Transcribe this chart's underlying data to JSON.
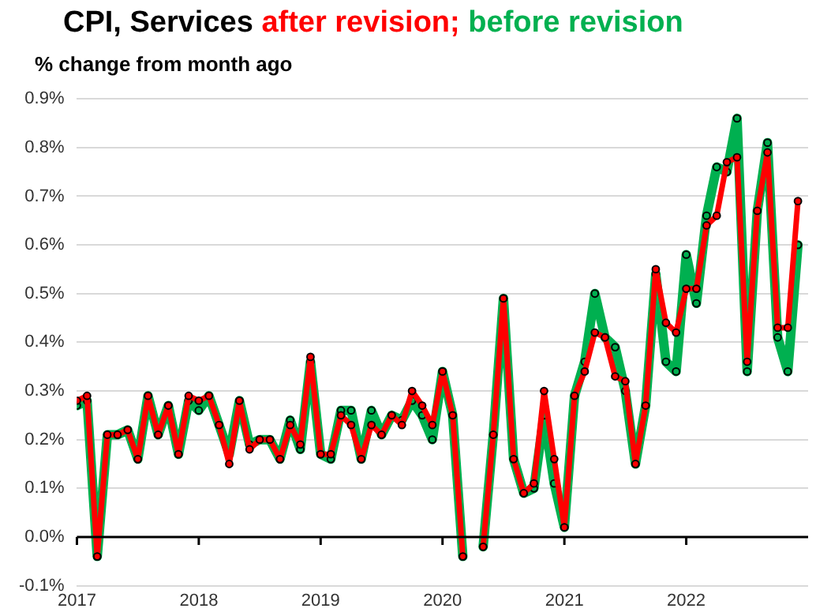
{
  "chart_data": {
    "type": "line",
    "title": "CPI, Services",
    "subtitle": "% change from month ago",
    "legend": "top",
    "grid": "y",
    "marker": "circle",
    "line_style": "solid",
    "x": [
      "2017-01",
      "2017-02",
      "2017-03",
      "2017-04",
      "2017-05",
      "2017-06",
      "2017-07",
      "2017-08",
      "2017-09",
      "2017-10",
      "2017-11",
      "2017-12",
      "2018-01",
      "2018-02",
      "2018-03",
      "2018-04",
      "2018-05",
      "2018-06",
      "2018-07",
      "2018-08",
      "2018-09",
      "2018-10",
      "2018-11",
      "2018-12",
      "2019-01",
      "2019-02",
      "2019-03",
      "2019-04",
      "2019-05",
      "2019-06",
      "2019-07",
      "2019-08",
      "2019-09",
      "2019-10",
      "2019-11",
      "2019-12",
      "2020-01",
      "2020-02",
      "2020-03",
      "2020-04",
      "2020-05",
      "2020-06",
      "2020-07",
      "2020-08",
      "2020-09",
      "2020-10",
      "2020-11",
      "2020-12",
      "2021-01",
      "2021-02",
      "2021-03",
      "2021-04",
      "2021-05",
      "2021-06",
      "2021-07",
      "2021-08",
      "2021-09",
      "2021-10",
      "2021-11",
      "2021-12",
      "2022-01",
      "2022-02",
      "2022-03",
      "2022-04",
      "2022-05",
      "2022-06",
      "2022-07",
      "2022-08",
      "2022-09",
      "2022-10",
      "2022-11",
      "2022-12"
    ],
    "xlim": [
      "2017",
      "2023"
    ],
    "xticks": [
      "2017",
      "2018",
      "2019",
      "2020",
      "2021",
      "2022"
    ],
    "ylim": [
      -0.1,
      0.9
    ],
    "yticks": [
      {
        "value": -0.1,
        "label": "-0.1%"
      },
      {
        "value": 0,
        "label": "0.0%"
      },
      {
        "value": 0.1,
        "label": "0.1%"
      },
      {
        "value": 0.2,
        "label": "0.2%"
      },
      {
        "value": 0.3,
        "label": "0.3%"
      },
      {
        "value": 0.4,
        "label": "0.4%"
      },
      {
        "value": 0.5,
        "label": "0.5%"
      },
      {
        "value": 0.6,
        "label": "0.6%"
      },
      {
        "value": 0.7,
        "label": "0.7%"
      },
      {
        "value": 0.8,
        "label": "0.8%"
      },
      {
        "value": 0.9,
        "label": "0.9%"
      }
    ],
    "series": [
      {
        "name": "after revision;",
        "color": "#ff0000",
        "values": [
          0.28,
          0.29,
          -0.04,
          0.21,
          0.21,
          0.22,
          0.16,
          0.29,
          0.21,
          0.27,
          0.17,
          0.29,
          0.28,
          0.29,
          0.23,
          0.15,
          0.28,
          0.18,
          0.2,
          0.2,
          0.16,
          0.23,
          0.19,
          0.37,
          0.17,
          0.17,
          0.25,
          0.23,
          0.16,
          0.23,
          0.21,
          0.25,
          0.23,
          0.3,
          0.27,
          0.23,
          0.34,
          0.25,
          -0.04,
          null,
          -0.02,
          0.21,
          0.49,
          0.16,
          0.09,
          0.11,
          0.3,
          0.16,
          0.02,
          0.29,
          0.34,
          0.42,
          0.41,
          0.33,
          0.32,
          0.15,
          0.27,
          0.55,
          0.44,
          0.42,
          0.51,
          0.51,
          0.64,
          0.66,
          0.77,
          0.78,
          0.36,
          0.67,
          0.79,
          0.43,
          0.43,
          0.69
        ]
      },
      {
        "name": "before revision",
        "color": "#00b050",
        "values": [
          0.27,
          0.28,
          -0.04,
          0.21,
          0.21,
          0.22,
          0.16,
          0.29,
          0.21,
          0.27,
          0.17,
          0.28,
          0.26,
          0.29,
          0.23,
          0.17,
          0.28,
          0.19,
          0.2,
          0.2,
          0.16,
          0.24,
          0.18,
          0.36,
          0.17,
          0.16,
          0.26,
          0.26,
          0.16,
          0.26,
          0.21,
          0.25,
          0.24,
          0.28,
          0.25,
          0.2,
          0.34,
          0.25,
          -0.04,
          null,
          -0.02,
          0.21,
          0.49,
          0.16,
          0.09,
          0.1,
          0.25,
          0.11,
          0.02,
          0.29,
          0.36,
          0.5,
          0.41,
          0.39,
          0.3,
          0.15,
          0.27,
          0.54,
          0.36,
          0.34,
          0.58,
          0.48,
          0.66,
          0.76,
          0.75,
          0.86,
          0.34,
          0.67,
          0.81,
          0.41,
          0.34,
          0.6
        ]
      }
    ]
  }
}
